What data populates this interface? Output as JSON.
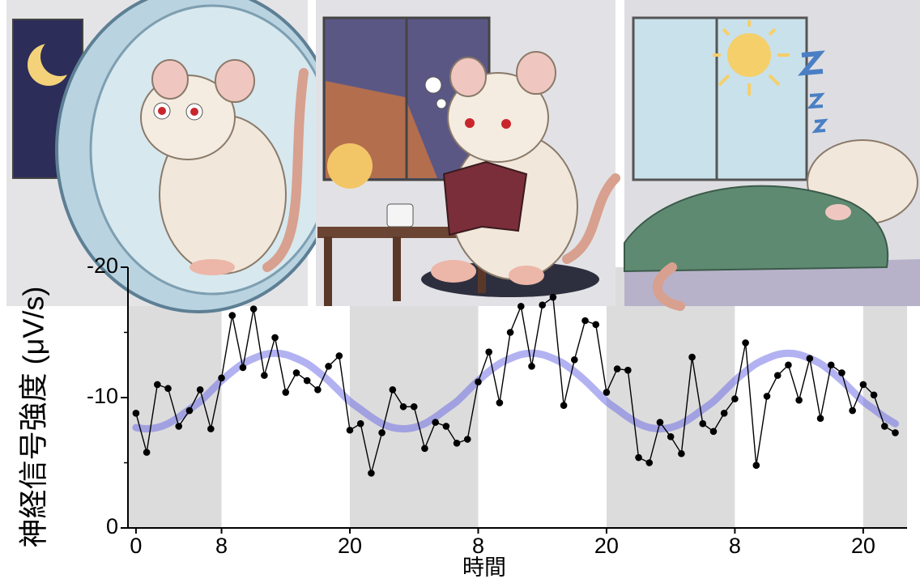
{
  "chart_data": {
    "type": "line",
    "ylabel": "神経信号強度 (μV/s)",
    "xlabel": "時間",
    "x": [
      0,
      1,
      2,
      3,
      4,
      5,
      6,
      7,
      8,
      9,
      10,
      11,
      12,
      13,
      14,
      15,
      16,
      17,
      18,
      19,
      20,
      21,
      22,
      23,
      24,
      25,
      26,
      27,
      28,
      29,
      30,
      31,
      32,
      33,
      34,
      35,
      36,
      37,
      38,
      39,
      40,
      41,
      42,
      43,
      44,
      45,
      46,
      47,
      48,
      49,
      50,
      51,
      52,
      53,
      54,
      55,
      56,
      57,
      58,
      59,
      60,
      61,
      62,
      63,
      64,
      65,
      66,
      67,
      68,
      69,
      70,
      71
    ],
    "series": [
      {
        "color": "#000000",
        "marker": true,
        "values": [
          -8.8,
          -5.8,
          -11.0,
          -10.7,
          -7.8,
          -9.0,
          -10.6,
          -7.6,
          -11.5,
          -16.3,
          -12.3,
          -16.8,
          -11.7,
          -14.6,
          -10.4,
          -11.9,
          -11.3,
          -10.6,
          -12.4,
          -13.2,
          -7.5,
          -8.0,
          -4.2,
          -7.3,
          -10.6,
          -9.3,
          -9.3,
          -6.1,
          -8.1,
          -7.8,
          -6.5,
          -6.8,
          -11.2,
          -13.5,
          -9.6,
          -15.0,
          -17.0,
          -12.4,
          -17.1,
          -17.7,
          -9.4,
          -12.9,
          -15.9,
          -15.6,
          -10.4,
          -12.2,
          -12.1,
          -5.4,
          -5.0,
          -8.1,
          -7.0,
          -5.7,
          -13.1,
          -8.0,
          -7.4,
          -8.8,
          -9.9,
          -14.2,
          -4.8,
          -10.1,
          -11.7,
          -12.5,
          -9.8,
          -13.0,
          -8.4,
          -12.5,
          -11.9,
          -9.0,
          -11.0,
          -10.2,
          -7.8,
          -7.3
        ]
      },
      {
        "color": "#6666e6",
        "marker": false,
        "smooth": true,
        "values": [
          -7.7,
          -7.6,
          -7.7,
          -8.0,
          -8.5,
          -9.1,
          -9.7,
          -10.5,
          -11.3,
          -12.0,
          -12.6,
          -13.0,
          -13.3,
          -13.4,
          -13.3,
          -13.0,
          -12.6,
          -12.0,
          -11.3,
          -10.5,
          -9.7,
          -9.1,
          -8.5,
          -8.0,
          -7.7,
          -7.6,
          -7.7,
          -8.0,
          -8.5,
          -9.1,
          -9.7,
          -10.5,
          -11.3,
          -12.0,
          -12.6,
          -13.0,
          -13.3,
          -13.4,
          -13.3,
          -13.0,
          -12.6,
          -12.0,
          -11.3,
          -10.5,
          -9.7,
          -9.1,
          -8.5,
          -8.0,
          -7.7,
          -7.6,
          -7.7,
          -8.0,
          -8.5,
          -9.1,
          -9.7,
          -10.5,
          -11.3,
          -12.0,
          -12.6,
          -13.0,
          -13.3,
          -13.4,
          -13.3,
          -13.0,
          -12.6,
          -12.0,
          -11.3,
          -10.5,
          -9.7,
          -9.1,
          -8.5,
          -8.0
        ]
      }
    ],
    "xlim": [
      -0.75,
      72.1
    ],
    "ylim": [
      0,
      -20
    ],
    "xticks": [
      0,
      8,
      20,
      {
        "value": 32,
        "label": "8"
      },
      {
        "value": 44,
        "label": "20"
      },
      {
        "value": 56,
        "label": "8"
      },
      {
        "value": 68,
        "label": "20"
      }
    ],
    "yticks": [
      0,
      -10,
      -20
    ],
    "yminorticks": [
      -5,
      -15
    ],
    "shaded_x": [
      [
        -0.75,
        8
      ],
      [
        20,
        32
      ],
      [
        44,
        56
      ],
      [
        68,
        72.1
      ]
    ],
    "shade_color": "#dcdcdc",
    "grid": false
  }
}
